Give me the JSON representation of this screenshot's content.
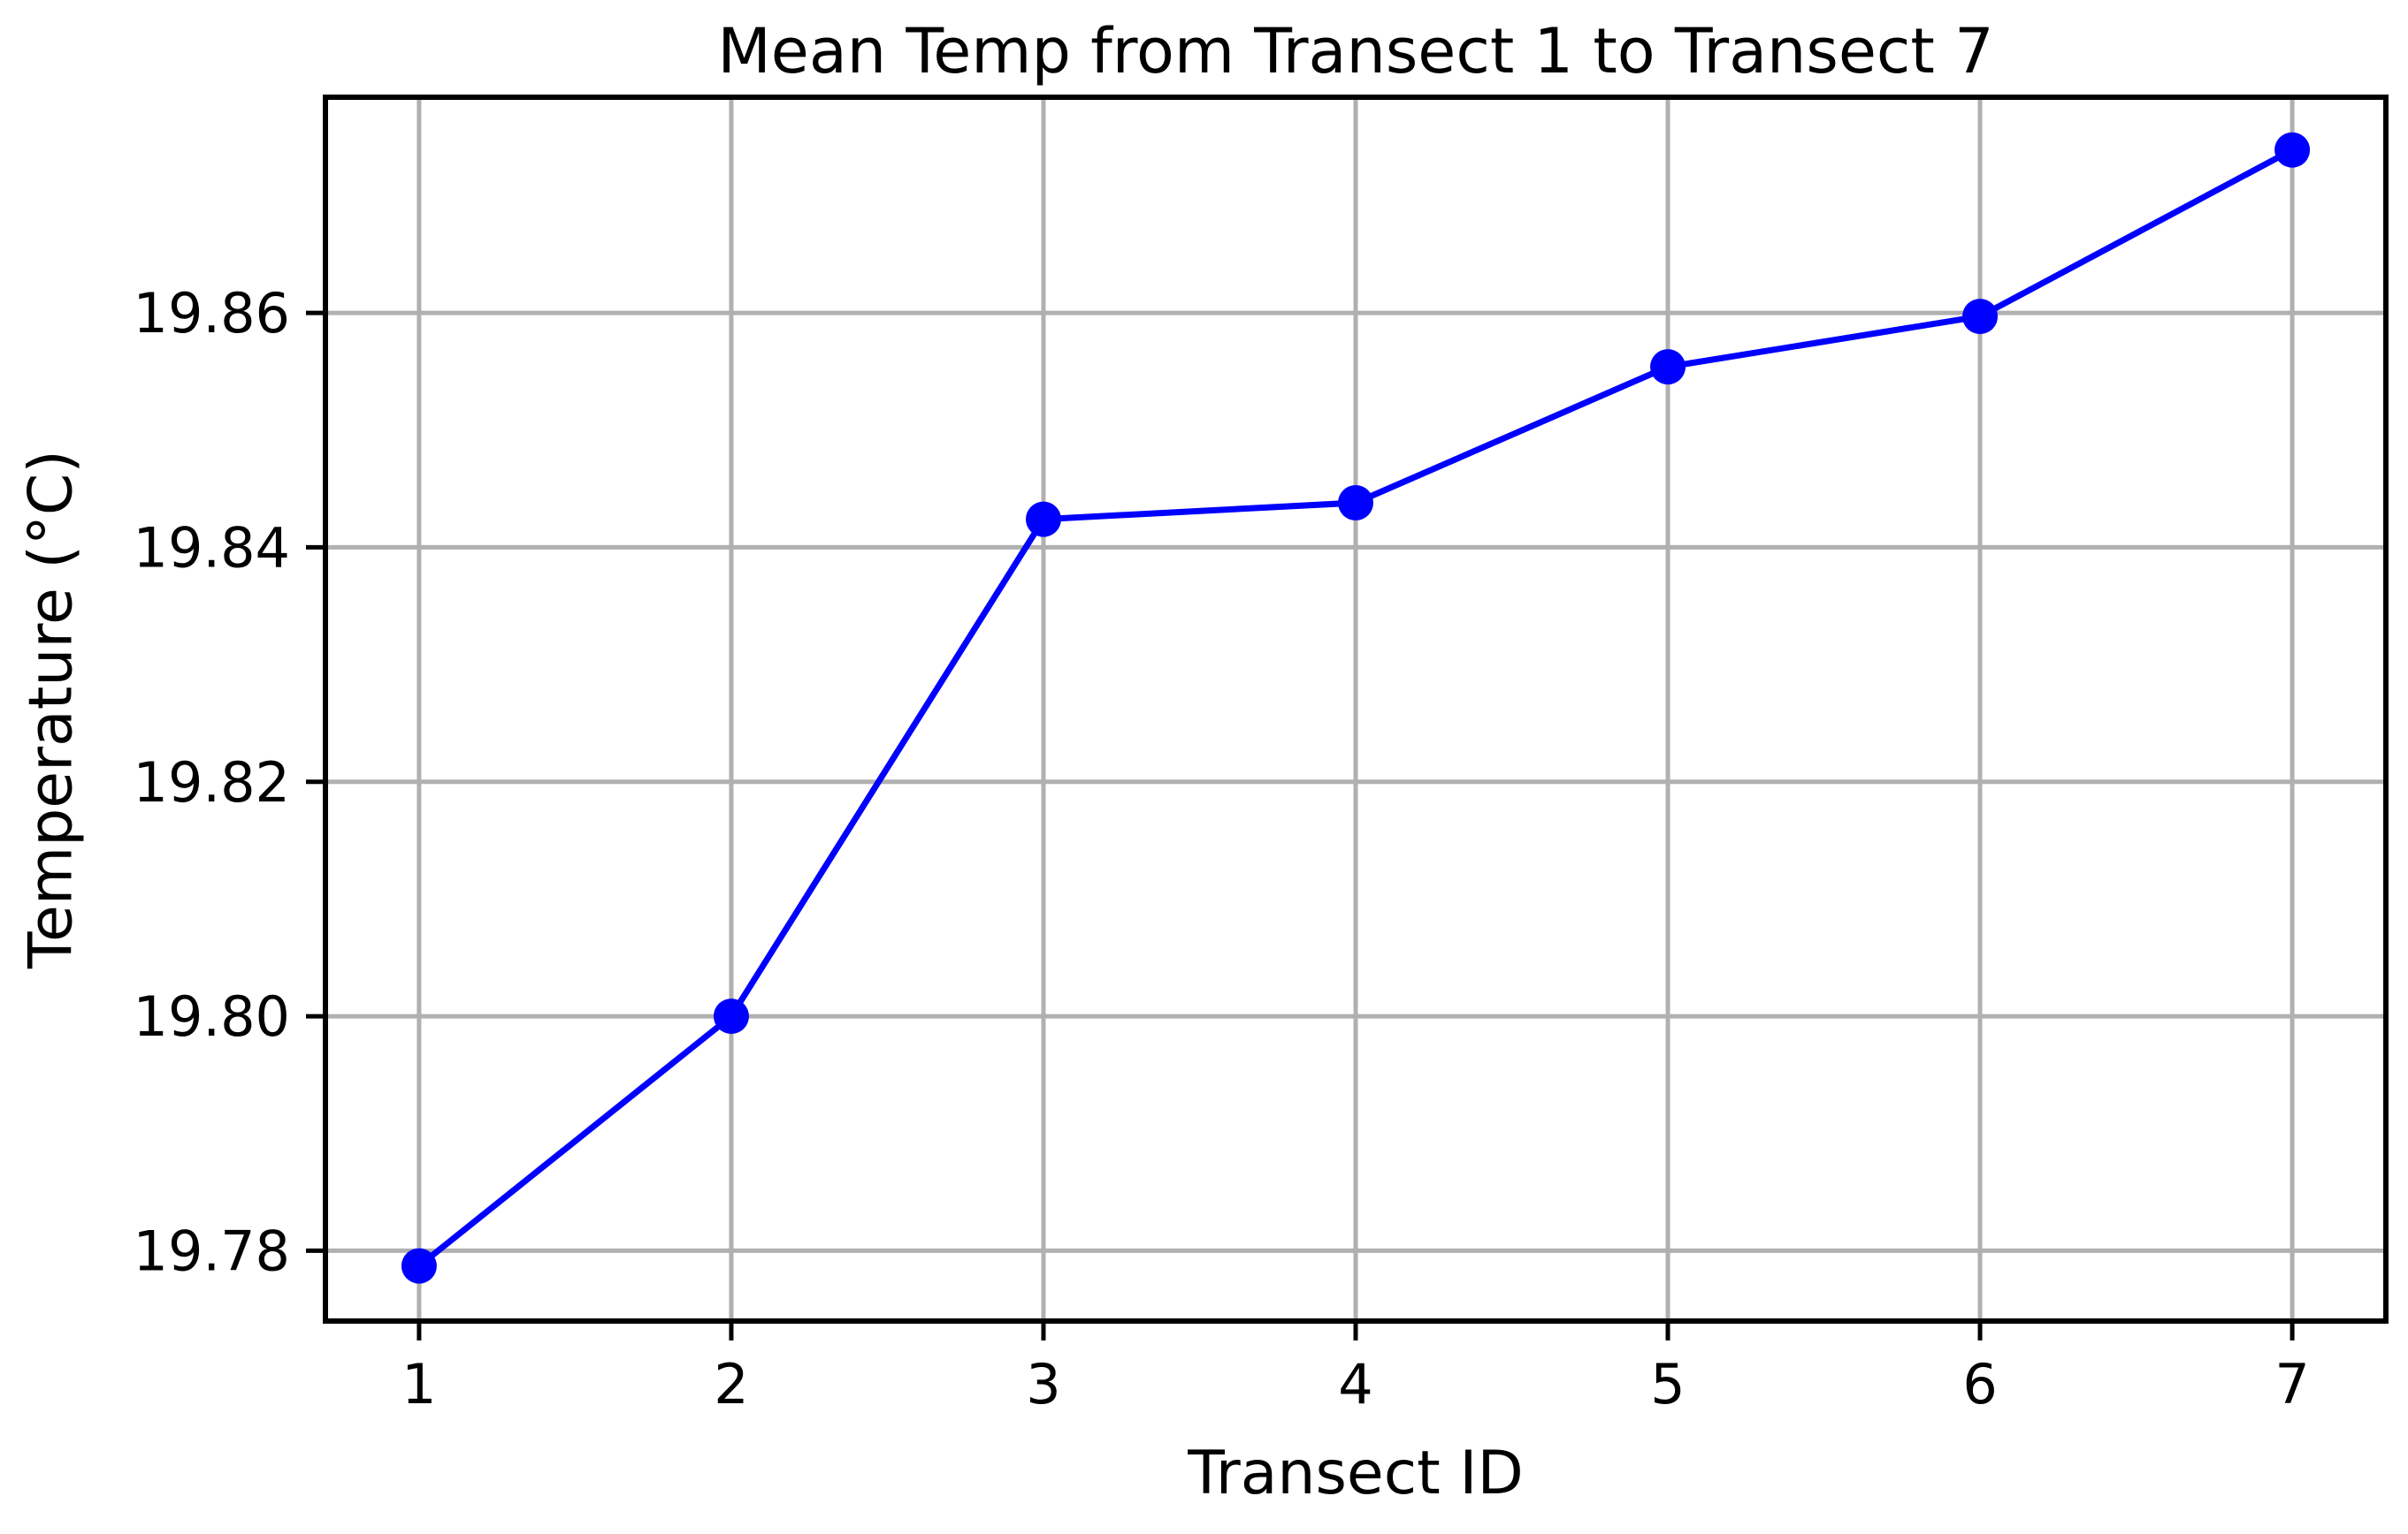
{
  "chart_data": {
    "type": "line",
    "title": "Mean Temp from Transect 1 to Transect 7",
    "xlabel": "Transect ID",
    "ylabel": "Temperature (°C)",
    "x": [
      1,
      2,
      3,
      4,
      5,
      6,
      7
    ],
    "x_tick_labels": [
      "1",
      "2",
      "3",
      "4",
      "5",
      "6",
      "7"
    ],
    "xlim": [
      0.7,
      7.3
    ],
    "y_ticks": [
      19.78,
      19.8,
      19.82,
      19.84,
      19.86
    ],
    "y_tick_labels": [
      "19.78",
      "19.80",
      "19.82",
      "19.84",
      "19.86"
    ],
    "ylim": [
      19.774,
      19.8784
    ],
    "grid": true,
    "series": [
      {
        "values": [
          19.7787,
          19.8,
          19.8424,
          19.8438,
          19.8554,
          19.8597,
          19.8739
        ],
        "color": "#0000ff",
        "marker": "circle"
      }
    ],
    "colors": {
      "line": "#0000ff",
      "grid": "#b0b0b0",
      "frame": "#000000"
    }
  }
}
